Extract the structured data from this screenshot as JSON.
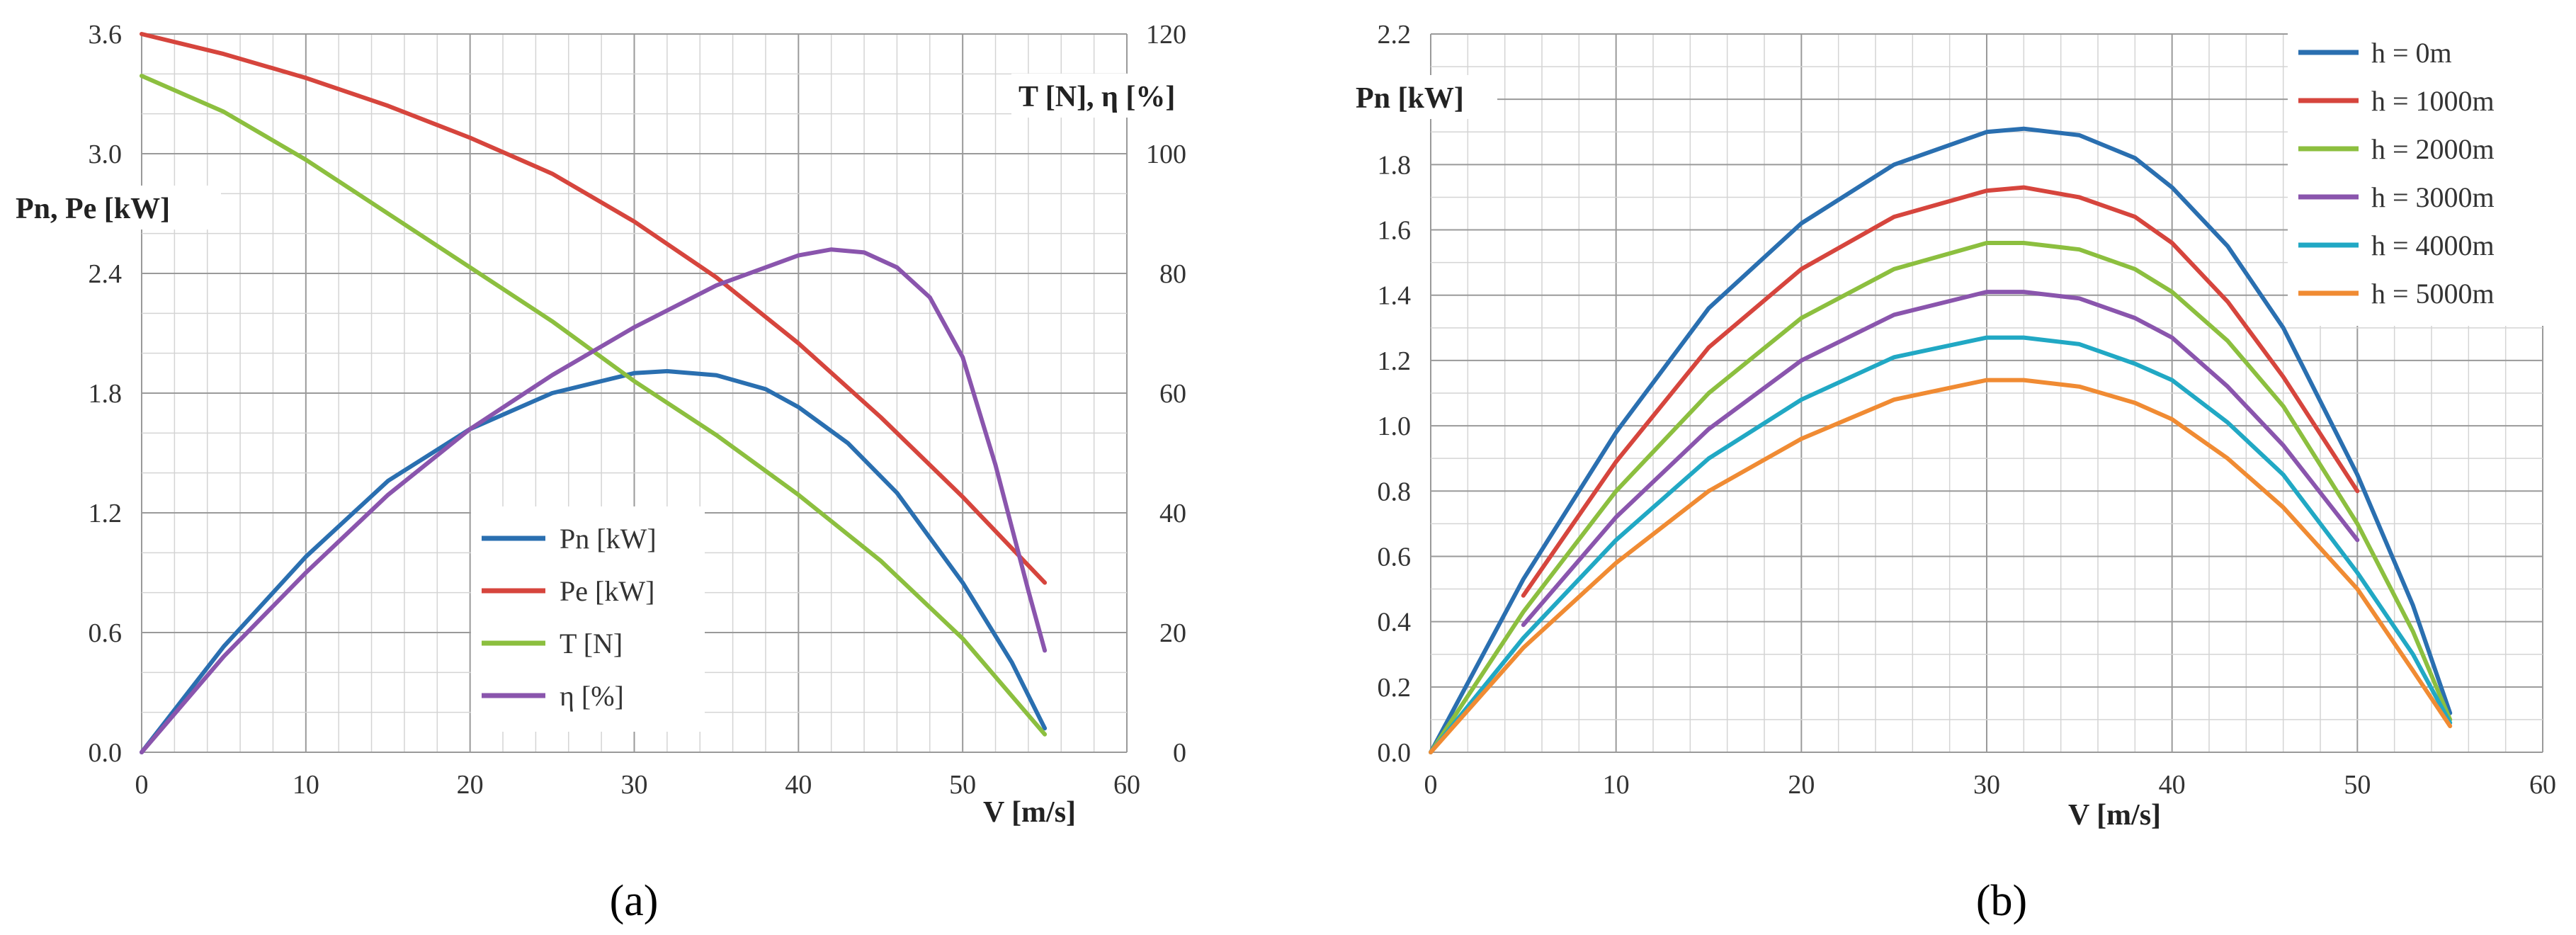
{
  "colors": {
    "blue": "#2a6fb0",
    "red": "#d6453d",
    "green": "#8cbf3f",
    "purple": "#8a55ad",
    "teal": "#21a8c4",
    "orange": "#f08b33",
    "grid_major": "#9a9a9a",
    "grid_minor": "#d4d4d4"
  },
  "captions": {
    "a": "(a)",
    "b": "(b)"
  },
  "chart_data": [
    {
      "id": "a",
      "type": "line",
      "xlabel": "V [m/s]",
      "ylabel_left": "Pn, Pe [kW]",
      "ylabel_right": "T [N], η [%]",
      "xlim": [
        0,
        60
      ],
      "ylim_left": [
        0,
        3.6
      ],
      "ylim_right": [
        0,
        120
      ],
      "xticks": [
        0,
        10,
        20,
        30,
        40,
        50,
        60
      ],
      "yticks_left": [
        "0.0",
        "0.6",
        "1.2",
        "1.8",
        "2.4",
        "3.0",
        "3.6"
      ],
      "yticks_right": [
        "0",
        "20",
        "40",
        "60",
        "80",
        "100",
        "120"
      ],
      "grid": true,
      "legend_position": "center",
      "series": [
        {
          "name": "Pn [kW]",
          "axis": "left",
          "color": "#2a6fb0",
          "x": [
            0,
            5,
            10,
            15,
            20,
            25,
            30,
            32,
            35,
            38,
            40,
            43,
            46,
            50,
            53,
            55
          ],
          "y": [
            0,
            0.53,
            0.98,
            1.36,
            1.62,
            1.8,
            1.9,
            1.91,
            1.89,
            1.82,
            1.73,
            1.55,
            1.3,
            0.85,
            0.45,
            0.12
          ]
        },
        {
          "name": "Pe [kW]",
          "axis": "left",
          "color": "#d6453d",
          "x": [
            0,
            5,
            10,
            15,
            20,
            25,
            30,
            35,
            40,
            45,
            50,
            55
          ],
          "y": [
            3.6,
            3.5,
            3.38,
            3.24,
            3.08,
            2.9,
            2.66,
            2.38,
            2.05,
            1.68,
            1.28,
            0.85
          ]
        },
        {
          "name": "T [N]",
          "axis": "right",
          "color": "#8cbf3f",
          "x": [
            0,
            5,
            10,
            15,
            20,
            25,
            30,
            35,
            40,
            45,
            50,
            55
          ],
          "y": [
            113,
            107,
            99,
            90,
            81,
            72,
            62,
            53,
            43,
            32,
            19,
            3
          ]
        },
        {
          "name": "η [%]",
          "axis": "right",
          "color": "#8a55ad",
          "x": [
            0,
            5,
            10,
            15,
            20,
            25,
            30,
            35,
            40,
            42,
            44,
            46,
            48,
            50,
            52,
            54,
            55
          ],
          "y": [
            0,
            16,
            30,
            43,
            54,
            63,
            71,
            78,
            83,
            84,
            83.5,
            81,
            76,
            66,
            48,
            27,
            17
          ]
        }
      ]
    },
    {
      "id": "b",
      "type": "line",
      "xlabel": "V [m/s]",
      "ylabel": "Pn [kW]",
      "xlim": [
        0,
        60
      ],
      "ylim": [
        0,
        2.2
      ],
      "xticks": [
        0,
        10,
        20,
        30,
        40,
        50,
        60
      ],
      "yticks": [
        "0.0",
        "0.2",
        "0.4",
        "0.6",
        "0.8",
        "1.0",
        "1.2",
        "1.4",
        "1.6",
        "1.8",
        "2.0",
        "2.2"
      ],
      "grid": true,
      "legend_position": "top-right",
      "series": [
        {
          "name": "h = 0m",
          "color": "#2a6fb0",
          "x": [
            0,
            5,
            10,
            15,
            20,
            25,
            30,
            32,
            35,
            38,
            40,
            43,
            46,
            50,
            53,
            55
          ],
          "y": [
            0,
            0.53,
            0.98,
            1.36,
            1.62,
            1.8,
            1.9,
            1.91,
            1.89,
            1.82,
            1.73,
            1.55,
            1.3,
            0.85,
            0.45,
            0.12
          ]
        },
        {
          "name": "h = 1000m",
          "color": "#d6453d",
          "x": [
            5,
            10,
            15,
            20,
            25,
            30,
            32,
            35,
            38,
            40,
            43,
            46,
            50
          ],
          "y": [
            0.48,
            0.89,
            1.24,
            1.48,
            1.64,
            1.72,
            1.73,
            1.7,
            1.64,
            1.56,
            1.38,
            1.15,
            0.8
          ]
        },
        {
          "name": "h = 2000m",
          "color": "#8cbf3f",
          "x": [
            0,
            5,
            10,
            15,
            20,
            25,
            30,
            32,
            35,
            38,
            40,
            43,
            46,
            50,
            53,
            55
          ],
          "y": [
            0,
            0.43,
            0.8,
            1.1,
            1.33,
            1.48,
            1.56,
            1.56,
            1.54,
            1.48,
            1.41,
            1.26,
            1.06,
            0.7,
            0.37,
            0.1
          ]
        },
        {
          "name": "h = 3000m",
          "color": "#8a55ad",
          "x": [
            5,
            10,
            15,
            20,
            25,
            30,
            32,
            35,
            38,
            40,
            43,
            46,
            50
          ],
          "y": [
            0.39,
            0.72,
            0.99,
            1.2,
            1.34,
            1.41,
            1.41,
            1.39,
            1.33,
            1.27,
            1.12,
            0.94,
            0.65
          ]
        },
        {
          "name": "h = 4000m",
          "color": "#21a8c4",
          "x": [
            0,
            5,
            10,
            15,
            20,
            25,
            30,
            32,
            35,
            38,
            40,
            43,
            46,
            50,
            53,
            55
          ],
          "y": [
            0,
            0.35,
            0.65,
            0.9,
            1.08,
            1.21,
            1.27,
            1.27,
            1.25,
            1.19,
            1.14,
            1.01,
            0.85,
            0.55,
            0.3,
            0.09
          ]
        },
        {
          "name": "h = 5000m",
          "color": "#f08b33",
          "x": [
            0,
            5,
            10,
            15,
            20,
            25,
            30,
            32,
            35,
            38,
            40,
            43,
            46,
            50,
            53,
            55
          ],
          "y": [
            0,
            0.32,
            0.58,
            0.8,
            0.96,
            1.08,
            1.14,
            1.14,
            1.12,
            1.07,
            1.02,
            0.9,
            0.75,
            0.5,
            0.25,
            0.08
          ]
        }
      ]
    }
  ]
}
